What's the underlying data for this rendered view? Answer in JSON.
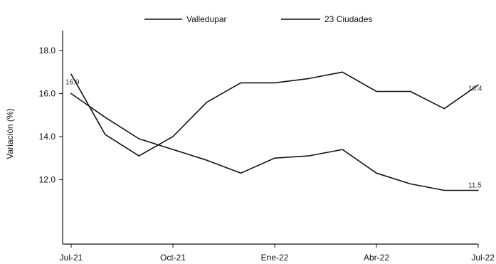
{
  "chart_data": {
    "type": "line",
    "title": "",
    "xlabel": "",
    "ylabel": "Variación (%)",
    "x": [
      "Jul-21",
      "Ago-21",
      "Sep-21",
      "Oct-21",
      "Nov-21",
      "Dic-21",
      "Ene-22",
      "Feb-22",
      "Mar-22",
      "Abr-22",
      "May-22",
      "Jun-22",
      "Jul-22"
    ],
    "x_tick_labels": [
      "Jul-21",
      "Oct-21",
      "Ene-22",
      "Abr-22",
      "Jul-22"
    ],
    "x_tick_indices": [
      0,
      3,
      6,
      9,
      12
    ],
    "y_ticks": [
      "18.0",
      "16.0",
      "14.0",
      "12.0"
    ],
    "y_tick_values": [
      18,
      16,
      14,
      12
    ],
    "ylim": [
      9.0,
      18.5
    ],
    "legend_position": "top-center",
    "series": [
      {
        "name": "Valledupar",
        "values": [
          16.9,
          14.1,
          13.1,
          14.0,
          15.6,
          16.5,
          16.5,
          16.7,
          17.0,
          16.1,
          16.1,
          15.3,
          16.4
        ],
        "color": "#111111",
        "end_label": "16.4"
      },
      {
        "name": "23 Ciudades",
        "values": [
          16.0,
          14.9,
          13.9,
          13.4,
          12.9,
          12.3,
          13.0,
          13.1,
          13.4,
          12.3,
          11.8,
          11.5,
          11.5
        ],
        "color": "#111111",
        "end_label": "11.5"
      }
    ],
    "start_label": "16.9"
  }
}
